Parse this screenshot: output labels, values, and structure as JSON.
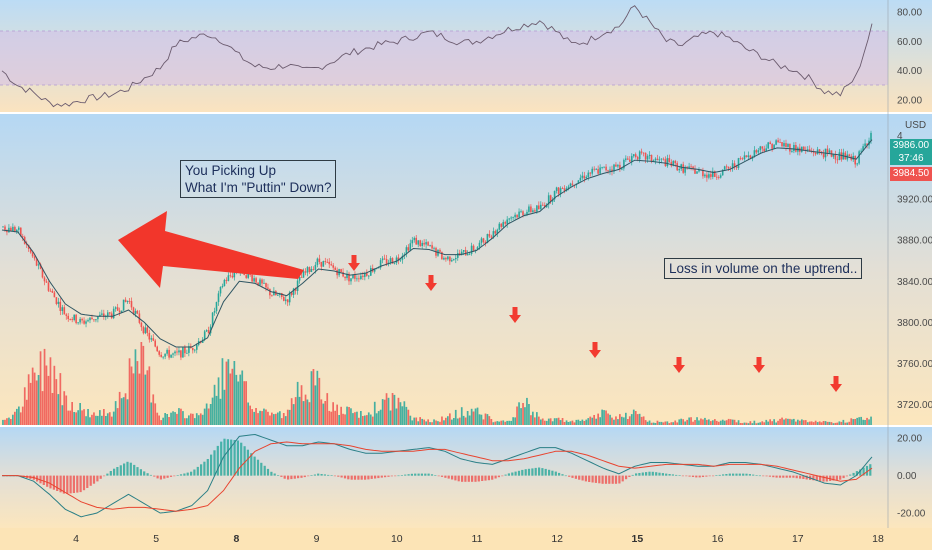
{
  "colors": {
    "up": "#26a69a",
    "down": "#ef5350",
    "arrow": "#f23b30",
    "rsi_line": "#6b5b6e",
    "macd_line": "#2a7f86",
    "signal_line": "#e8442f",
    "ma_line": "#2f5663"
  },
  "annotations": {
    "note_1_line_1": "You Picking Up",
    "note_1_line_2": "What I'm \"Puttin\" Down?",
    "note_2": "Loss in volume on the uptrend.."
  },
  "price_axis": {
    "currency": "USD",
    "partial_label": "4",
    "current_price": "3986.00",
    "countdown": "37:46",
    "prev_price": "3984.50"
  },
  "chart_data": [
    {
      "type": "line",
      "panel": "rsi",
      "yticks": [
        "80.00",
        "60.00",
        "40.00",
        "20.00"
      ],
      "band": [
        30,
        70
      ],
      "ylim": [
        12,
        88
      ],
      "x": [
        0,
        0.2,
        0.4,
        0.6,
        0.8,
        1.0,
        1.2,
        1.4,
        1.6,
        1.8,
        2.0,
        2.2,
        2.4,
        2.6,
        2.8,
        3.0,
        3.2,
        3.4,
        3.6,
        3.8,
        4.0,
        4.2,
        4.4,
        4.6,
        4.8,
        5.0,
        5.2,
        5.4,
        5.6,
        5.8,
        6.0,
        6.2,
        6.4,
        6.6,
        6.8,
        7.0,
        7.2,
        7.4,
        7.6,
        7.8,
        8.0,
        8.2,
        8.4,
        8.6,
        8.8,
        9.0,
        9.2,
        9.4,
        9.6,
        9.8,
        10.0,
        10.2,
        10.4,
        10.6,
        10.8,
        11.0
      ],
      "values": [
        40,
        30,
        25,
        18,
        17,
        20,
        22,
        24,
        28,
        35,
        42,
        58,
        62,
        65,
        60,
        50,
        43,
        42,
        44,
        40,
        42,
        47,
        52,
        55,
        58,
        60,
        63,
        66,
        63,
        59,
        60,
        64,
        68,
        71,
        74,
        67,
        58,
        60,
        66,
        70,
        84,
        72,
        60,
        57,
        63,
        66,
        62,
        55,
        50,
        44,
        41,
        35,
        26,
        24,
        36,
        70
      ]
    },
    {
      "type": "candlestick",
      "panel": "price",
      "yticks": [
        "3920.00",
        "3880.00",
        "3840.00",
        "3800.00",
        "3760.00",
        "3720.00"
      ],
      "ylim": [
        3700,
        4003
      ],
      "xticks": [
        "4",
        "5",
        "8",
        "9",
        "10",
        "11",
        "12",
        "15",
        "16",
        "17",
        "18"
      ],
      "bold_xticks": [
        "8",
        "15"
      ],
      "x": [
        0,
        0.2,
        0.4,
        0.6,
        0.8,
        1.0,
        1.2,
        1.4,
        1.6,
        1.8,
        2.0,
        2.2,
        2.4,
        2.6,
        2.8,
        3.0,
        3.2,
        3.4,
        3.6,
        3.8,
        4.0,
        4.2,
        4.4,
        4.6,
        4.8,
        5.0,
        5.2,
        5.4,
        5.6,
        5.8,
        6.0,
        6.2,
        6.4,
        6.6,
        6.8,
        7.0,
        7.2,
        7.4,
        7.6,
        7.8,
        8.0,
        8.2,
        8.4,
        8.6,
        8.8,
        9.0,
        9.2,
        9.4,
        9.6,
        9.8,
        10.0,
        10.2,
        10.4,
        10.6,
        10.8,
        11.0
      ],
      "close": [
        3893,
        3890,
        3862,
        3832,
        3808,
        3800,
        3805,
        3808,
        3822,
        3792,
        3770,
        3768,
        3775,
        3790,
        3840,
        3852,
        3842,
        3828,
        3822,
        3845,
        3860,
        3852,
        3843,
        3848,
        3858,
        3862,
        3880,
        3873,
        3862,
        3866,
        3873,
        3888,
        3902,
        3908,
        3911,
        3927,
        3936,
        3945,
        3949,
        3952,
        3964,
        3959,
        3956,
        3950,
        3947,
        3943,
        3950,
        3961,
        3970,
        3975,
        3970,
        3967,
        3965,
        3962,
        3957,
        3986
      ],
      "ma": [
        3890,
        3888,
        3868,
        3840,
        3818,
        3808,
        3806,
        3806,
        3812,
        3800,
        3784,
        3776,
        3776,
        3785,
        3820,
        3840,
        3838,
        3830,
        3826,
        3838,
        3852,
        3850,
        3846,
        3848,
        3855,
        3860,
        3872,
        3871,
        3866,
        3866,
        3870,
        3882,
        3896,
        3904,
        3908,
        3922,
        3932,
        3940,
        3945,
        3949,
        3958,
        3957,
        3955,
        3951,
        3949,
        3946,
        3949,
        3957,
        3965,
        3970,
        3969,
        3967,
        3965,
        3963,
        3959,
        3978
      ],
      "volume": [
        3,
        8,
        30,
        42,
        18,
        10,
        6,
        10,
        30,
        40,
        5,
        8,
        6,
        10,
        34,
        28,
        10,
        8,
        6,
        28,
        24,
        10,
        8,
        6,
        14,
        16,
        4,
        3,
        4,
        8,
        9,
        3,
        2,
        14,
        4,
        4,
        2,
        3,
        8,
        5,
        7,
        2,
        2,
        3,
        4,
        4,
        3,
        2,
        2,
        3,
        4,
        2,
        2,
        2,
        4,
        5
      ]
    },
    {
      "type": "histogram",
      "panel": "macd",
      "yticks": [
        "20.00",
        "0.00",
        "-20.00"
      ],
      "ylim": [
        -28,
        26
      ],
      "x": [
        0,
        0.2,
        0.4,
        0.6,
        0.8,
        1.0,
        1.2,
        1.4,
        1.6,
        1.8,
        2.0,
        2.2,
        2.4,
        2.6,
        2.8,
        3.0,
        3.2,
        3.4,
        3.6,
        3.8,
        4.0,
        4.2,
        4.4,
        4.6,
        4.8,
        5.0,
        5.2,
        5.4,
        5.6,
        5.8,
        6.0,
        6.2,
        6.4,
        6.6,
        6.8,
        7.0,
        7.2,
        7.4,
        7.6,
        7.8,
        8.0,
        8.2,
        8.4,
        8.6,
        8.8,
        9.0,
        9.2,
        9.4,
        9.6,
        9.8,
        10.0,
        10.2,
        10.4,
        10.6,
        10.8,
        11.0
      ],
      "macd": [
        0,
        0,
        -3,
        -10,
        -18,
        -22,
        -20,
        -15,
        -10,
        -15,
        -20,
        -19,
        -16,
        -8,
        10,
        21,
        22,
        19,
        16,
        16,
        18,
        17,
        14,
        12,
        12,
        13,
        14,
        15,
        13,
        9,
        7,
        6,
        9,
        12,
        15,
        15,
        12,
        8,
        4,
        1,
        5,
        7,
        7,
        6,
        5,
        5,
        7,
        7,
        6,
        4,
        2,
        -1,
        -4,
        -5,
        0,
        10
      ],
      "signal": [
        0,
        0,
        -1,
        -4,
        -9,
        -14,
        -17,
        -18,
        -17,
        -17,
        -18,
        -19,
        -18,
        -16,
        -8,
        4,
        13,
        17,
        18,
        17,
        17,
        17,
        16,
        14,
        13,
        13,
        13,
        14,
        14,
        12,
        10,
        8,
        8,
        9,
        11,
        13,
        13,
        11,
        8,
        5,
        4,
        5,
        6,
        6,
        6,
        5,
        6,
        6,
        6,
        5,
        3,
        1,
        -1,
        -3,
        -2,
        4
      ]
    }
  ]
}
